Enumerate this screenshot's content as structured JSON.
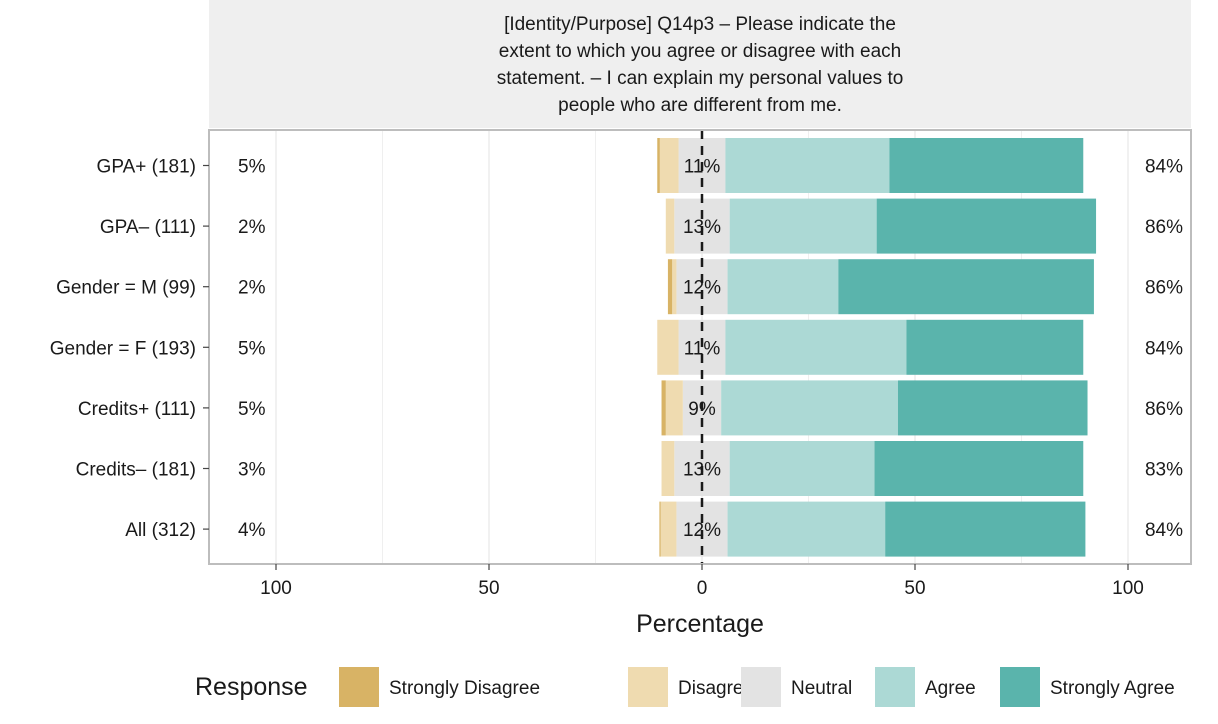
{
  "chart_data": {
    "type": "bar",
    "orientation": "horizontal",
    "subtype": "diverging-stacked-likert",
    "title": "[Identity/Purpose] Q14p3 – Please indicate the extent to which you agree or disagree with each statement. – I can explain my personal values to people who are different from me.",
    "title_lines": [
      "[Identity/Purpose] Q14p3 – Please indicate the",
      "extent to which you agree or disagree with each",
      "statement. – I can explain my personal values to",
      "people who are different from me."
    ],
    "xlabel": "Percentage",
    "ylabel": "",
    "xlim": [
      -100,
      100
    ],
    "x_ticks": [
      -100,
      -50,
      0,
      50,
      100
    ],
    "x_tick_labels": [
      "100",
      "50",
      "0",
      "50",
      "100"
    ],
    "grid": true,
    "legend": {
      "title": "Response",
      "position": "bottom",
      "entries": [
        "Strongly Disagree",
        "Disagree",
        "Neutral",
        "Agree",
        "Strongly Agree"
      ]
    },
    "colors": {
      "Strongly Disagree": "#d8b365",
      "Disagree": "#efdbb0",
      "Neutral": "#e3e3e3",
      "Agree": "#acd9d5",
      "Strongly Agree": "#5ab4ac"
    },
    "categories": [
      "GPA+ (181)",
      "GPA– (111)",
      "Gender = M (99)",
      "Gender = F (193)",
      "Credits+ (111)",
      "Credits– (181)",
      "All (312)"
    ],
    "series": [
      {
        "name": "Strongly Disagree",
        "values": [
          0.6,
          0.0,
          1.0,
          0.0,
          1.0,
          0.0,
          0.3
        ]
      },
      {
        "name": "Disagree",
        "values": [
          4.4,
          2.0,
          1.0,
          5.0,
          4.0,
          3.0,
          3.7
        ]
      },
      {
        "name": "Neutral",
        "values": [
          11,
          13,
          12,
          11,
          9,
          13,
          12
        ]
      },
      {
        "name": "Agree",
        "values": [
          38.5,
          34.5,
          26,
          42.5,
          41.5,
          34,
          37
        ]
      },
      {
        "name": "Strongly Agree",
        "values": [
          45.5,
          51.5,
          60,
          41.5,
          44.5,
          49,
          47
        ]
      }
    ],
    "labels": {
      "left": [
        "5%",
        "2%",
        "2%",
        "5%",
        "5%",
        "3%",
        "4%"
      ],
      "center": [
        "11%",
        "13%",
        "12%",
        "11%",
        "9%",
        "13%",
        "12%"
      ],
      "right": [
        "84%",
        "86%",
        "86%",
        "84%",
        "86%",
        "83%",
        "84%"
      ]
    }
  }
}
